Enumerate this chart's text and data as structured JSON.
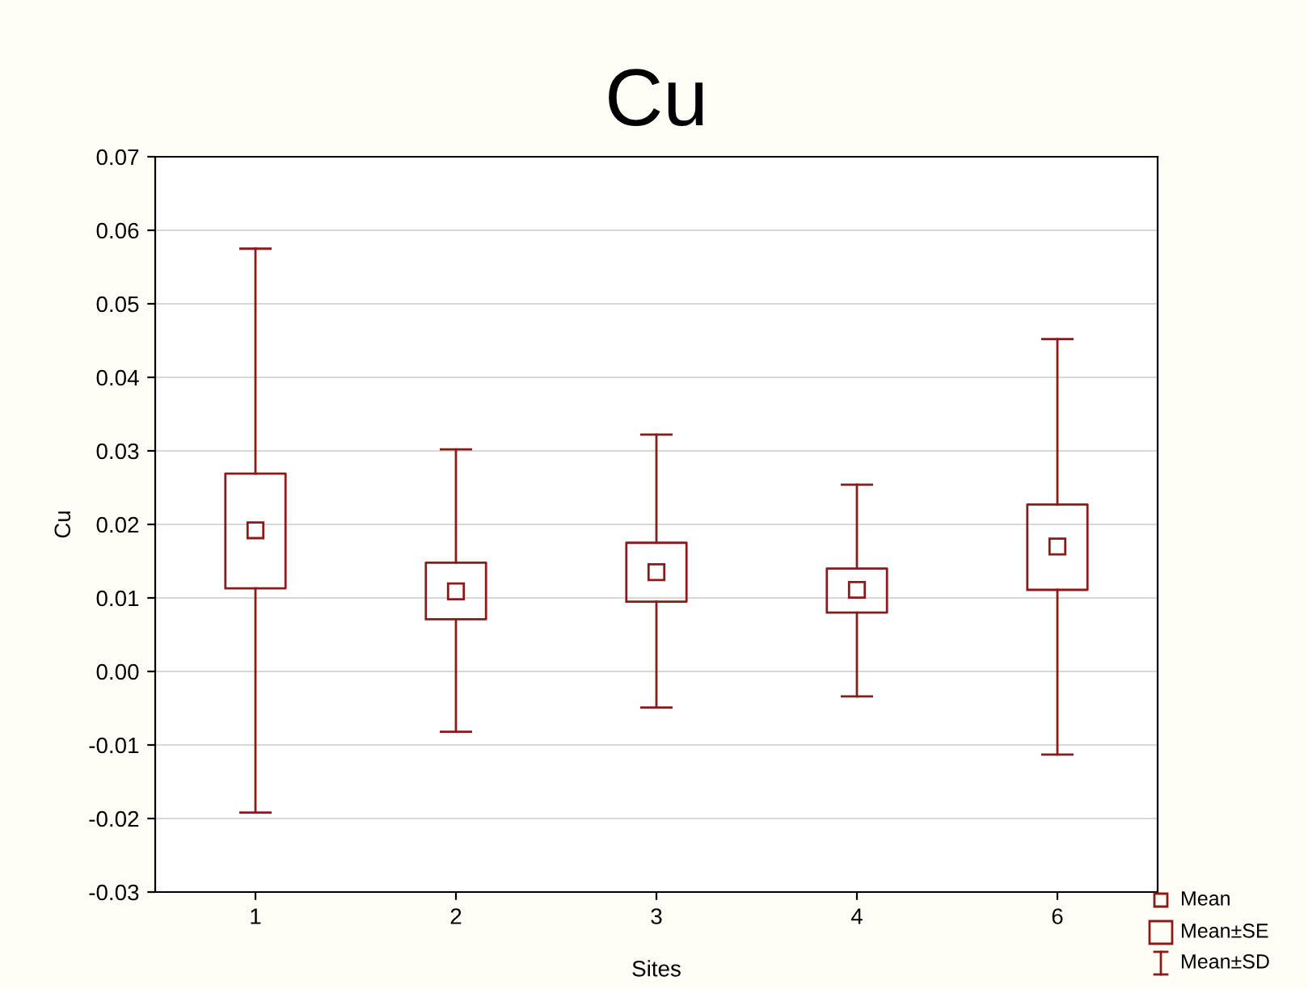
{
  "chart_data": {
    "type": "box",
    "title": "Cu",
    "xlabel": "Sites",
    "ylabel": "Cu",
    "categories": [
      "1",
      "2",
      "3",
      "4",
      "6"
    ],
    "color": "#8b1a1a",
    "boxes": [
      {
        "low": -0.0192,
        "q1": 0.0113,
        "median": 0.0192,
        "q3": 0.0269,
        "high": 0.0575
      },
      {
        "low": -0.0082,
        "q1": 0.0071,
        "median": 0.0109,
        "q3": 0.0148,
        "high": 0.0302
      },
      {
        "low": -0.0049,
        "q1": 0.0095,
        "median": 0.0135,
        "q3": 0.0175,
        "high": 0.0322
      },
      {
        "low": -0.0034,
        "q1": 0.008,
        "median": 0.0111,
        "q3": 0.014,
        "high": 0.0254
      },
      {
        "low": -0.0113,
        "q1": 0.0111,
        "median": 0.017,
        "q3": 0.0227,
        "high": 0.0452
      }
    ],
    "ylim": [
      -0.03,
      0.07
    ],
    "yticks": [
      {
        "value": -0.03,
        "label": "-0.03"
      },
      {
        "value": -0.02,
        "label": "-0.02"
      },
      {
        "value": -0.01,
        "label": "-0.01"
      },
      {
        "value": 0.0,
        "label": "0.00"
      },
      {
        "value": 0.01,
        "label": "0.01"
      },
      {
        "value": 0.02,
        "label": "0.02"
      },
      {
        "value": 0.03,
        "label": "0.03"
      },
      {
        "value": 0.04,
        "label": "0.04"
      },
      {
        "value": 0.05,
        "label": "0.05"
      },
      {
        "value": 0.06,
        "label": "0.06"
      },
      {
        "value": 0.07,
        "label": "0.07"
      }
    ],
    "grid": "y",
    "annotations": [
      "Mean",
      "Mean±SE",
      "Mean±SD"
    ]
  }
}
